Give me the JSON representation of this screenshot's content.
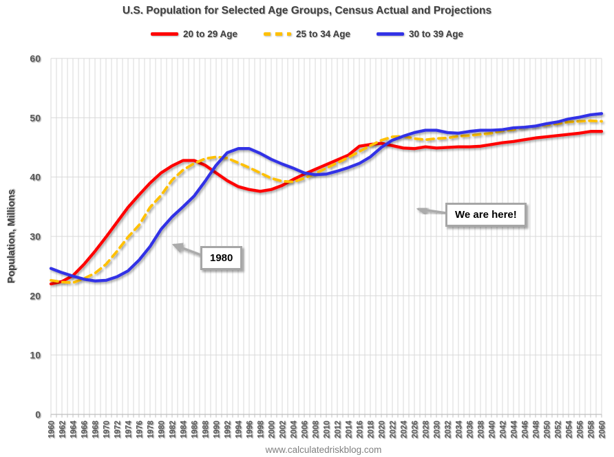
{
  "chart_data": {
    "type": "line",
    "title": "U.S. Population for Selected Age Groups, Census Actual and Projections",
    "xlabel": "",
    "ylabel": "Population, Millions",
    "ylim": [
      0,
      60
    ],
    "y_ticks": [
      0,
      10,
      20,
      30,
      40,
      50,
      60
    ],
    "x_range": [
      1960,
      2060
    ],
    "x_tick_step": 2,
    "grid": "both",
    "legend_position": "top",
    "x": [
      1960,
      1962,
      1964,
      1966,
      1968,
      1970,
      1972,
      1974,
      1976,
      1978,
      1980,
      1982,
      1984,
      1986,
      1988,
      1990,
      1992,
      1994,
      1996,
      1998,
      2000,
      2002,
      2004,
      2006,
      2008,
      2010,
      2012,
      2014,
      2016,
      2018,
      2020,
      2022,
      2024,
      2026,
      2028,
      2030,
      2032,
      2034,
      2036,
      2038,
      2040,
      2042,
      2044,
      2046,
      2048,
      2050,
      2052,
      2054,
      2056,
      2058,
      2060
    ],
    "series": [
      {
        "name": "20 to 29 Age",
        "color": "#FE0000",
        "style": "solid",
        "values": [
          22.0,
          22.4,
          23.4,
          25.3,
          27.5,
          29.9,
          32.4,
          34.9,
          37.0,
          39.0,
          40.7,
          41.9,
          42.8,
          42.8,
          42.0,
          40.7,
          39.4,
          38.4,
          37.9,
          37.6,
          37.9,
          38.6,
          39.6,
          40.5,
          41.3,
          42.1,
          42.9,
          43.7,
          45.2,
          45.5,
          45.7,
          45.3,
          44.9,
          44.8,
          45.1,
          44.9,
          45.0,
          45.1,
          45.1,
          45.2,
          45.5,
          45.8,
          46.0,
          46.3,
          46.6,
          46.8,
          47.0,
          47.2,
          47.4,
          47.7,
          47.7
        ]
      },
      {
        "name": "25 to 34 Age",
        "color": "#FFC000",
        "style": "dashed",
        "values": [
          22.6,
          22.3,
          22.2,
          22.9,
          23.8,
          25.3,
          27.5,
          29.9,
          31.9,
          34.9,
          36.9,
          39.5,
          41.2,
          42.3,
          43.1,
          43.4,
          43.2,
          42.4,
          41.6,
          40.7,
          39.8,
          39.3,
          39.2,
          39.8,
          40.6,
          41.5,
          42.4,
          43.3,
          44.3,
          45.3,
          46.2,
          46.8,
          46.9,
          46.5,
          46.3,
          46.5,
          46.6,
          46.9,
          47.0,
          47.2,
          47.4,
          47.8,
          48.0,
          48.4,
          48.6,
          48.8,
          49.0,
          49.3,
          49.4,
          49.5,
          49.4
        ]
      },
      {
        "name": "30 to 39 Age",
        "color": "#3333E6",
        "style": "solid",
        "values": [
          24.6,
          23.9,
          23.3,
          22.8,
          22.5,
          22.6,
          23.2,
          24.2,
          26.0,
          28.3,
          31.2,
          33.3,
          35.0,
          36.8,
          39.3,
          42.0,
          44.1,
          44.8,
          44.8,
          44.0,
          43.0,
          42.2,
          41.5,
          40.7,
          40.4,
          40.5,
          41.0,
          41.6,
          42.3,
          43.4,
          45.0,
          46.2,
          46.9,
          47.5,
          47.9,
          47.9,
          47.5,
          47.4,
          47.7,
          47.9,
          47.9,
          48.0,
          48.3,
          48.4,
          48.6,
          49.0,
          49.3,
          49.8,
          50.1,
          50.5,
          50.7
        ]
      }
    ],
    "annotations": [
      {
        "id": "vline-1980",
        "type": "vline",
        "x_year": 1980.4,
        "v_top": 46,
        "v_bottom": 17,
        "label": "1980"
      },
      {
        "id": "vline-we-are-here",
        "type": "vline",
        "x_year": 2024.4,
        "v_top": 52,
        "v_bottom": 22.5,
        "label": "We are here!"
      }
    ]
  },
  "footer": {
    "url": "www.calculatedriskblog.com"
  },
  "colors": {
    "grid": "#D9D9D9",
    "axis": "#BFBFBF",
    "tick_text": "#595959",
    "title_text": "#404040",
    "annotation_gray": "#A6A6A6",
    "arrow_gray": "#ABABAB",
    "footer_text": "#7F7F7F"
  }
}
